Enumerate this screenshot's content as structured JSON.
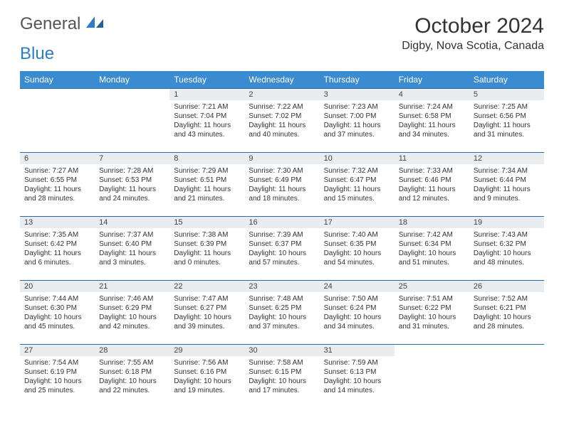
{
  "logo": {
    "text1": "General",
    "text2": "Blue"
  },
  "title": "October 2024",
  "location": "Digby, Nova Scotia, Canada",
  "colors": {
    "header_bg": "#3b8bd0",
    "header_text": "#ffffff",
    "daynum_bg": "#e9edef",
    "border": "#2a6aa5",
    "logo_gray": "#555555",
    "logo_blue": "#2a7ec6"
  },
  "weekdays": [
    "Sunday",
    "Monday",
    "Tuesday",
    "Wednesday",
    "Thursday",
    "Friday",
    "Saturday"
  ],
  "weeks": [
    [
      null,
      null,
      {
        "n": "1",
        "sr": "Sunrise: 7:21 AM",
        "ss": "Sunset: 7:04 PM",
        "dl": "Daylight: 11 hours and 43 minutes."
      },
      {
        "n": "2",
        "sr": "Sunrise: 7:22 AM",
        "ss": "Sunset: 7:02 PM",
        "dl": "Daylight: 11 hours and 40 minutes."
      },
      {
        "n": "3",
        "sr": "Sunrise: 7:23 AM",
        "ss": "Sunset: 7:00 PM",
        "dl": "Daylight: 11 hours and 37 minutes."
      },
      {
        "n": "4",
        "sr": "Sunrise: 7:24 AM",
        "ss": "Sunset: 6:58 PM",
        "dl": "Daylight: 11 hours and 34 minutes."
      },
      {
        "n": "5",
        "sr": "Sunrise: 7:25 AM",
        "ss": "Sunset: 6:56 PM",
        "dl": "Daylight: 11 hours and 31 minutes."
      }
    ],
    [
      {
        "n": "6",
        "sr": "Sunrise: 7:27 AM",
        "ss": "Sunset: 6:55 PM",
        "dl": "Daylight: 11 hours and 28 minutes."
      },
      {
        "n": "7",
        "sr": "Sunrise: 7:28 AM",
        "ss": "Sunset: 6:53 PM",
        "dl": "Daylight: 11 hours and 24 minutes."
      },
      {
        "n": "8",
        "sr": "Sunrise: 7:29 AM",
        "ss": "Sunset: 6:51 PM",
        "dl": "Daylight: 11 hours and 21 minutes."
      },
      {
        "n": "9",
        "sr": "Sunrise: 7:30 AM",
        "ss": "Sunset: 6:49 PM",
        "dl": "Daylight: 11 hours and 18 minutes."
      },
      {
        "n": "10",
        "sr": "Sunrise: 7:32 AM",
        "ss": "Sunset: 6:47 PM",
        "dl": "Daylight: 11 hours and 15 minutes."
      },
      {
        "n": "11",
        "sr": "Sunrise: 7:33 AM",
        "ss": "Sunset: 6:46 PM",
        "dl": "Daylight: 11 hours and 12 minutes."
      },
      {
        "n": "12",
        "sr": "Sunrise: 7:34 AM",
        "ss": "Sunset: 6:44 PM",
        "dl": "Daylight: 11 hours and 9 minutes."
      }
    ],
    [
      {
        "n": "13",
        "sr": "Sunrise: 7:35 AM",
        "ss": "Sunset: 6:42 PM",
        "dl": "Daylight: 11 hours and 6 minutes."
      },
      {
        "n": "14",
        "sr": "Sunrise: 7:37 AM",
        "ss": "Sunset: 6:40 PM",
        "dl": "Daylight: 11 hours and 3 minutes."
      },
      {
        "n": "15",
        "sr": "Sunrise: 7:38 AM",
        "ss": "Sunset: 6:39 PM",
        "dl": "Daylight: 11 hours and 0 minutes."
      },
      {
        "n": "16",
        "sr": "Sunrise: 7:39 AM",
        "ss": "Sunset: 6:37 PM",
        "dl": "Daylight: 10 hours and 57 minutes."
      },
      {
        "n": "17",
        "sr": "Sunrise: 7:40 AM",
        "ss": "Sunset: 6:35 PM",
        "dl": "Daylight: 10 hours and 54 minutes."
      },
      {
        "n": "18",
        "sr": "Sunrise: 7:42 AM",
        "ss": "Sunset: 6:34 PM",
        "dl": "Daylight: 10 hours and 51 minutes."
      },
      {
        "n": "19",
        "sr": "Sunrise: 7:43 AM",
        "ss": "Sunset: 6:32 PM",
        "dl": "Daylight: 10 hours and 48 minutes."
      }
    ],
    [
      {
        "n": "20",
        "sr": "Sunrise: 7:44 AM",
        "ss": "Sunset: 6:30 PM",
        "dl": "Daylight: 10 hours and 45 minutes."
      },
      {
        "n": "21",
        "sr": "Sunrise: 7:46 AM",
        "ss": "Sunset: 6:29 PM",
        "dl": "Daylight: 10 hours and 42 minutes."
      },
      {
        "n": "22",
        "sr": "Sunrise: 7:47 AM",
        "ss": "Sunset: 6:27 PM",
        "dl": "Daylight: 10 hours and 39 minutes."
      },
      {
        "n": "23",
        "sr": "Sunrise: 7:48 AM",
        "ss": "Sunset: 6:25 PM",
        "dl": "Daylight: 10 hours and 37 minutes."
      },
      {
        "n": "24",
        "sr": "Sunrise: 7:50 AM",
        "ss": "Sunset: 6:24 PM",
        "dl": "Daylight: 10 hours and 34 minutes."
      },
      {
        "n": "25",
        "sr": "Sunrise: 7:51 AM",
        "ss": "Sunset: 6:22 PM",
        "dl": "Daylight: 10 hours and 31 minutes."
      },
      {
        "n": "26",
        "sr": "Sunrise: 7:52 AM",
        "ss": "Sunset: 6:21 PM",
        "dl": "Daylight: 10 hours and 28 minutes."
      }
    ],
    [
      {
        "n": "27",
        "sr": "Sunrise: 7:54 AM",
        "ss": "Sunset: 6:19 PM",
        "dl": "Daylight: 10 hours and 25 minutes."
      },
      {
        "n": "28",
        "sr": "Sunrise: 7:55 AM",
        "ss": "Sunset: 6:18 PM",
        "dl": "Daylight: 10 hours and 22 minutes."
      },
      {
        "n": "29",
        "sr": "Sunrise: 7:56 AM",
        "ss": "Sunset: 6:16 PM",
        "dl": "Daylight: 10 hours and 19 minutes."
      },
      {
        "n": "30",
        "sr": "Sunrise: 7:58 AM",
        "ss": "Sunset: 6:15 PM",
        "dl": "Daylight: 10 hours and 17 minutes."
      },
      {
        "n": "31",
        "sr": "Sunrise: 7:59 AM",
        "ss": "Sunset: 6:13 PM",
        "dl": "Daylight: 10 hours and 14 minutes."
      },
      null,
      null
    ]
  ]
}
